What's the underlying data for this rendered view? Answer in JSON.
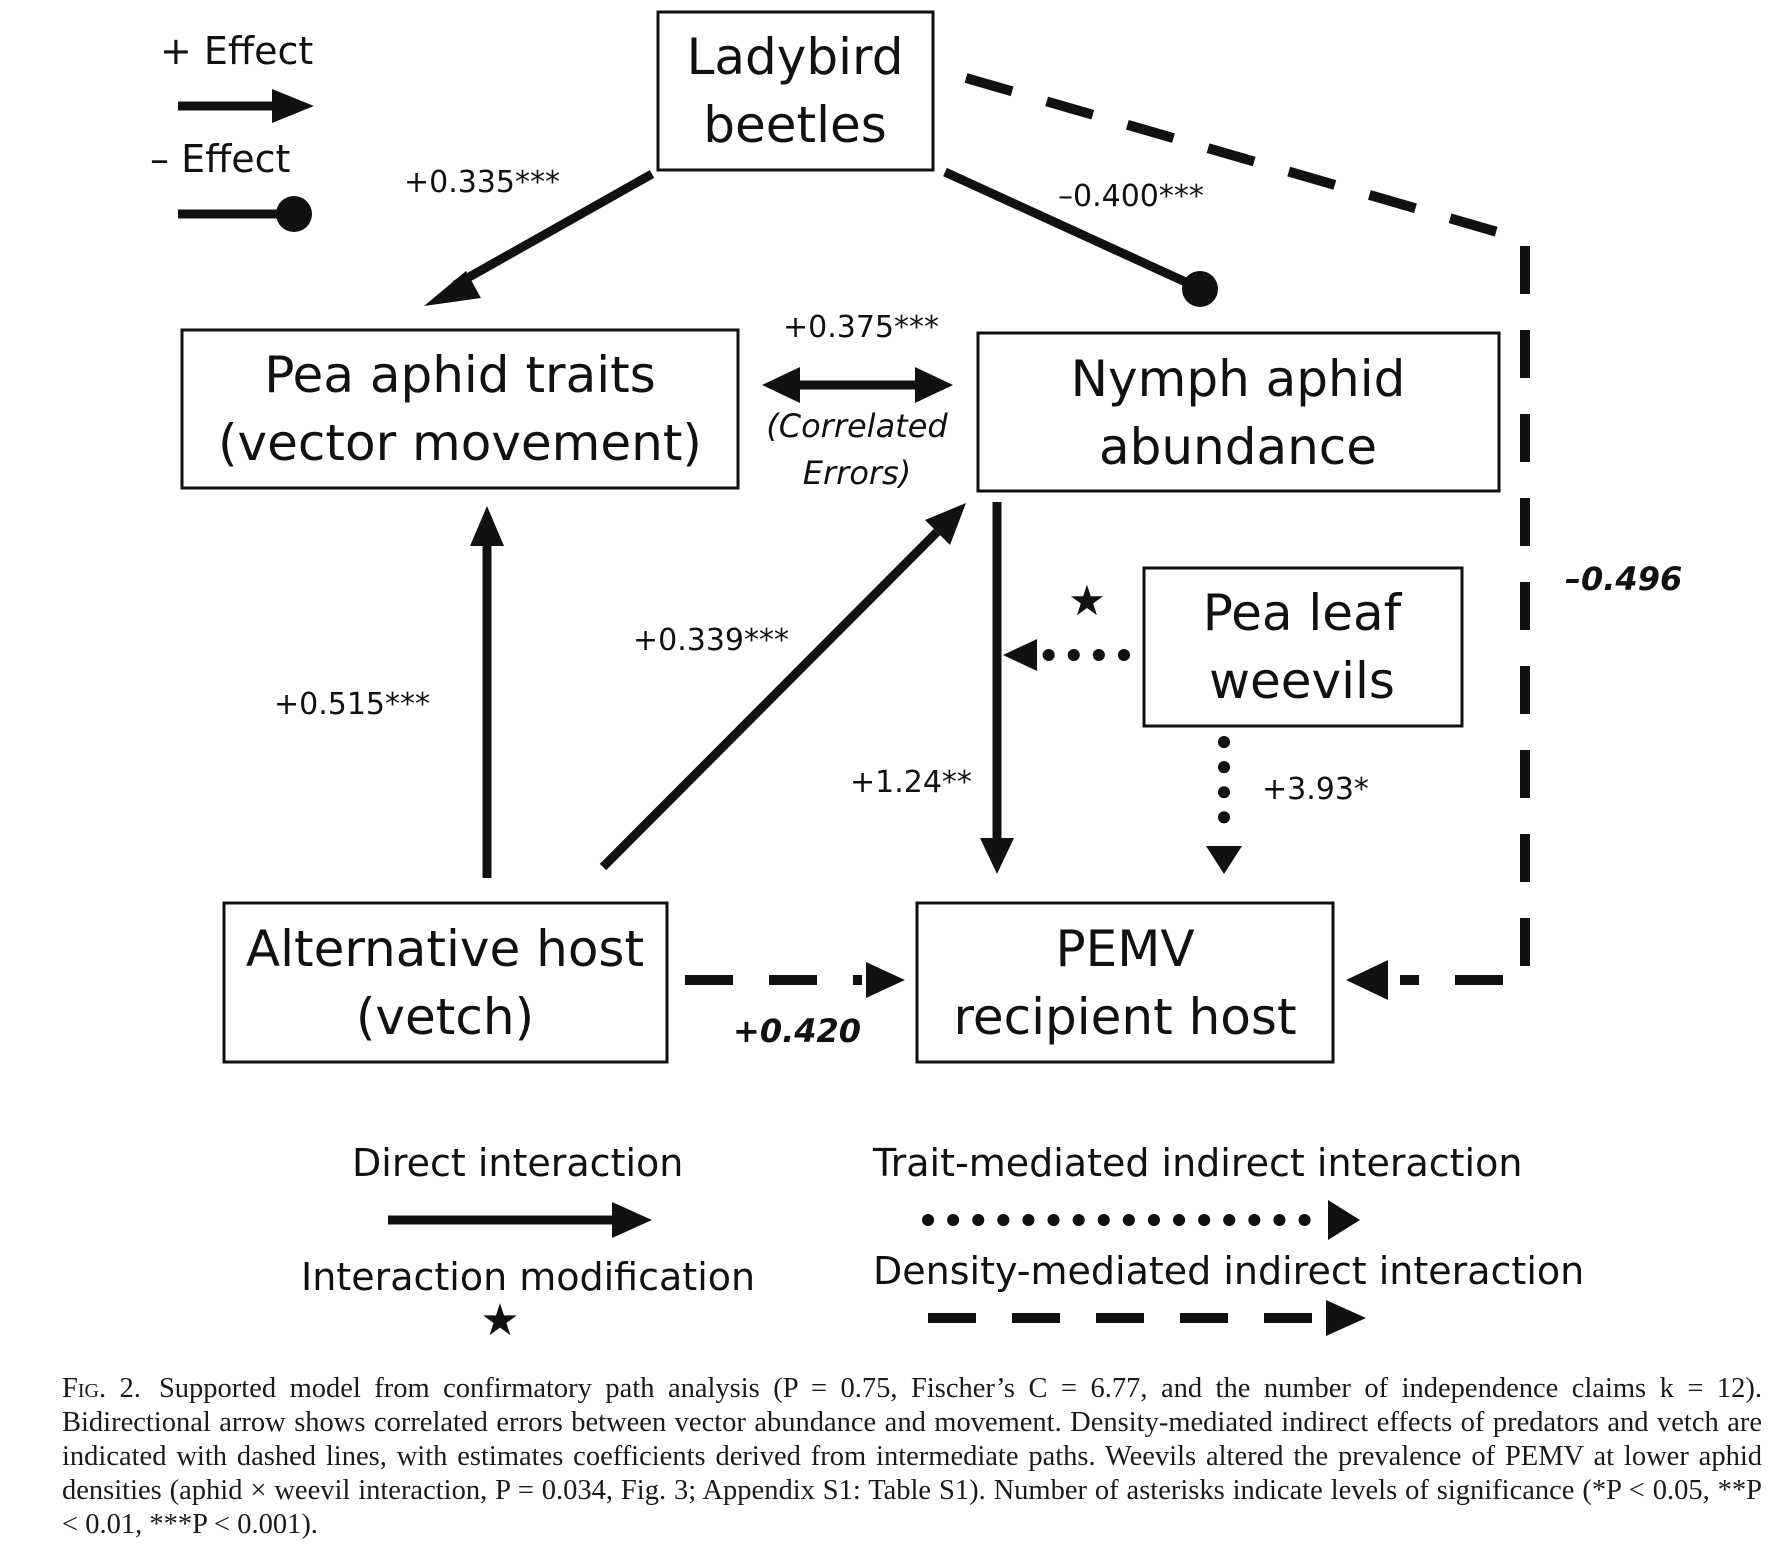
{
  "legend_top": {
    "positive_label": "+ Effect",
    "negative_label": "– Effect"
  },
  "nodes": {
    "ladybird": [
      "Ladybird",
      "beetles"
    ],
    "pea_aphid": [
      "Pea aphid traits",
      "(vector movement)"
    ],
    "nymph": [
      "Nymph aphid",
      "abundance"
    ],
    "weevils": [
      "Pea leaf",
      "weevils"
    ],
    "alt_host": [
      "Alternative host",
      "(vetch)"
    ],
    "pemv": [
      "PEMV",
      "recipient host"
    ]
  },
  "edges": {
    "ladybird_to_pea_aphid": "+0.335***",
    "ladybird_to_nymph": "–0.400***",
    "ladybird_to_pemv": "–0.496",
    "correlated": "+0.375***",
    "correlated_note": [
      "(Correlated",
      "Errors)"
    ],
    "alt_to_pea_aphid": "+0.515***",
    "alt_to_nymph": "+0.339***",
    "nymph_to_pemv": "+1.24**",
    "weevils_to_pemv": "+3.93*",
    "alt_to_pemv": "+0.420"
  },
  "legend_bottom": {
    "direct": "Direct interaction",
    "modification": "Interaction modification",
    "trait": "Trait-mediated indirect interaction",
    "density": "Density-mediated indirect interaction"
  },
  "caption": {
    "fig_label": "Fig. 2.",
    "text": "Supported model from confirmatory path analysis (P = 0.75, Fischer’s C = 6.77, and the number of independence claims k = 12). Bidirectional arrow shows correlated errors between vector abundance and movement. Density-mediated indirect effects of predators and vetch are indicated with dashed lines, with estimates coefficients derived from intermediate paths. Weevils altered the prevalence of PEMV at lower aphid densities (aphid × weevil interaction, P = 0.034, Fig. 3; Appendix S1: Table S1). Number of asterisks indicate levels of significance (*P < 0.05, **P < 0.01, ***P < 0.001)."
  }
}
